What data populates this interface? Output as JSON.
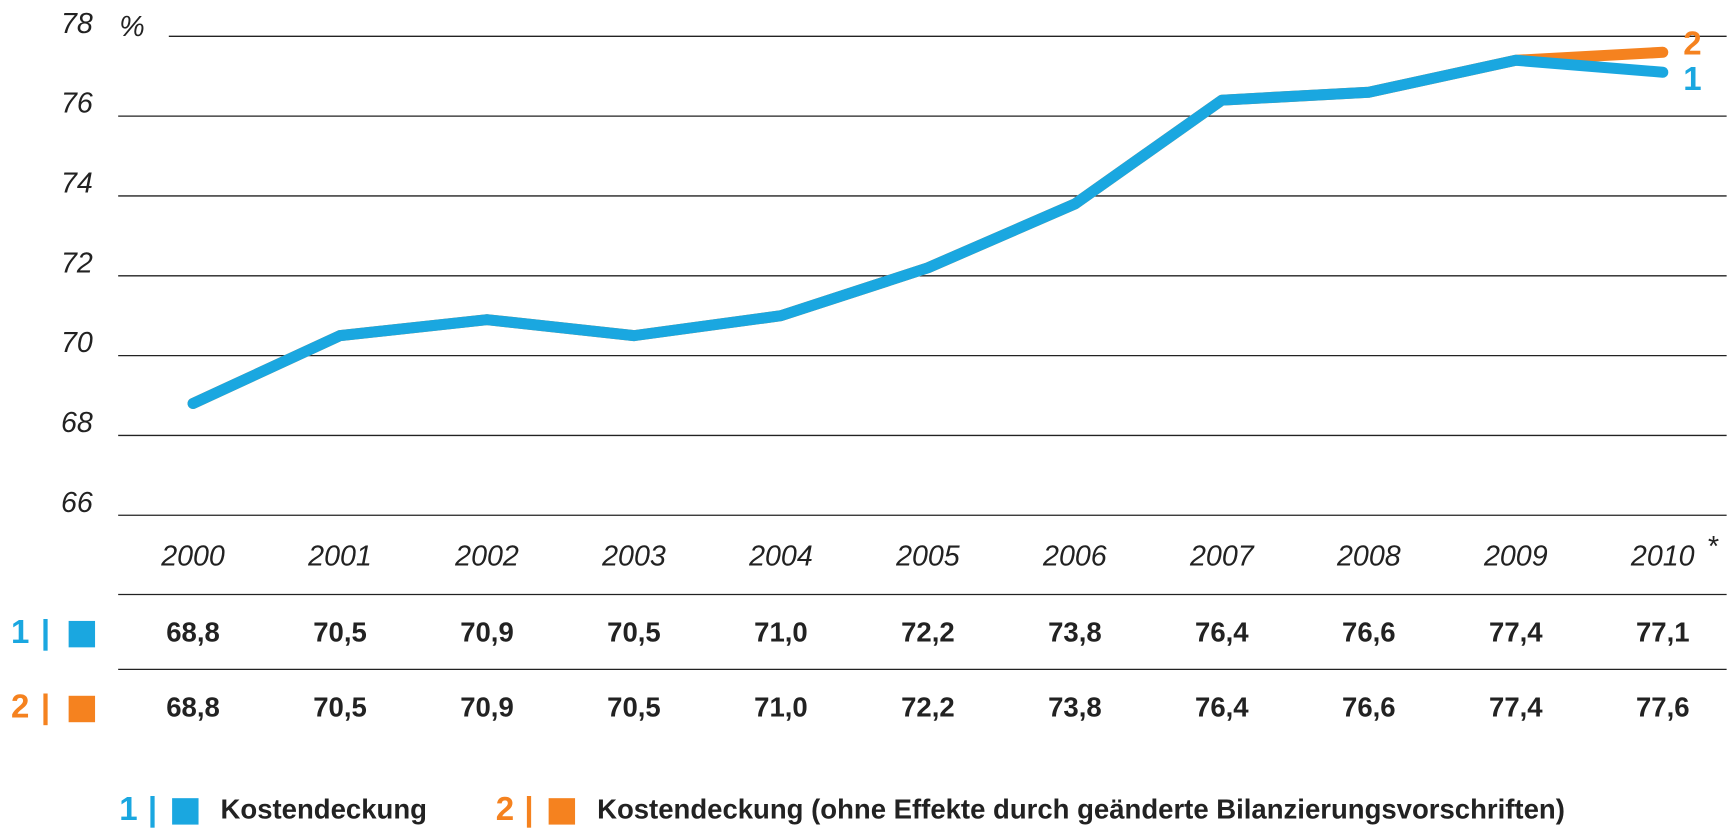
{
  "chart_data": {
    "type": "line",
    "y_unit": "%",
    "categories": [
      "2000",
      "2001",
      "2002",
      "2003",
      "2004",
      "2005",
      "2006",
      "2007",
      "2008",
      "2009",
      "2010"
    ],
    "footnote_mark": "*",
    "separator": "|",
    "series": [
      {
        "name": "Kostendeckung",
        "label": "1",
        "color": "#1aa7e0",
        "values": [
          68.8,
          70.5,
          70.9,
          70.5,
          71.0,
          72.2,
          73.8,
          76.4,
          76.6,
          77.4,
          77.1
        ],
        "value_labels": [
          "68,8",
          "70,5",
          "70,9",
          "70,5",
          "71,0",
          "72,2",
          "73,8",
          "76,4",
          "76,6",
          "77,4",
          "77,1"
        ]
      },
      {
        "name": "Kostendeckung (ohne Effekte durch geänderte Bilanzierungsvorschriften)",
        "label": "2",
        "color": "#f5821f",
        "values": [
          68.8,
          70.5,
          70.9,
          70.5,
          71.0,
          72.2,
          73.8,
          76.4,
          76.6,
          77.4,
          77.6
        ],
        "value_labels": [
          "68,8",
          "70,5",
          "70,9",
          "70,5",
          "71,0",
          "72,2",
          "73,8",
          "76,4",
          "76,6",
          "77,4",
          "77,6"
        ]
      }
    ],
    "ylim": [
      66,
      78
    ],
    "yticks": [
      66,
      68,
      70,
      72,
      74,
      76,
      78
    ],
    "grid": true
  }
}
